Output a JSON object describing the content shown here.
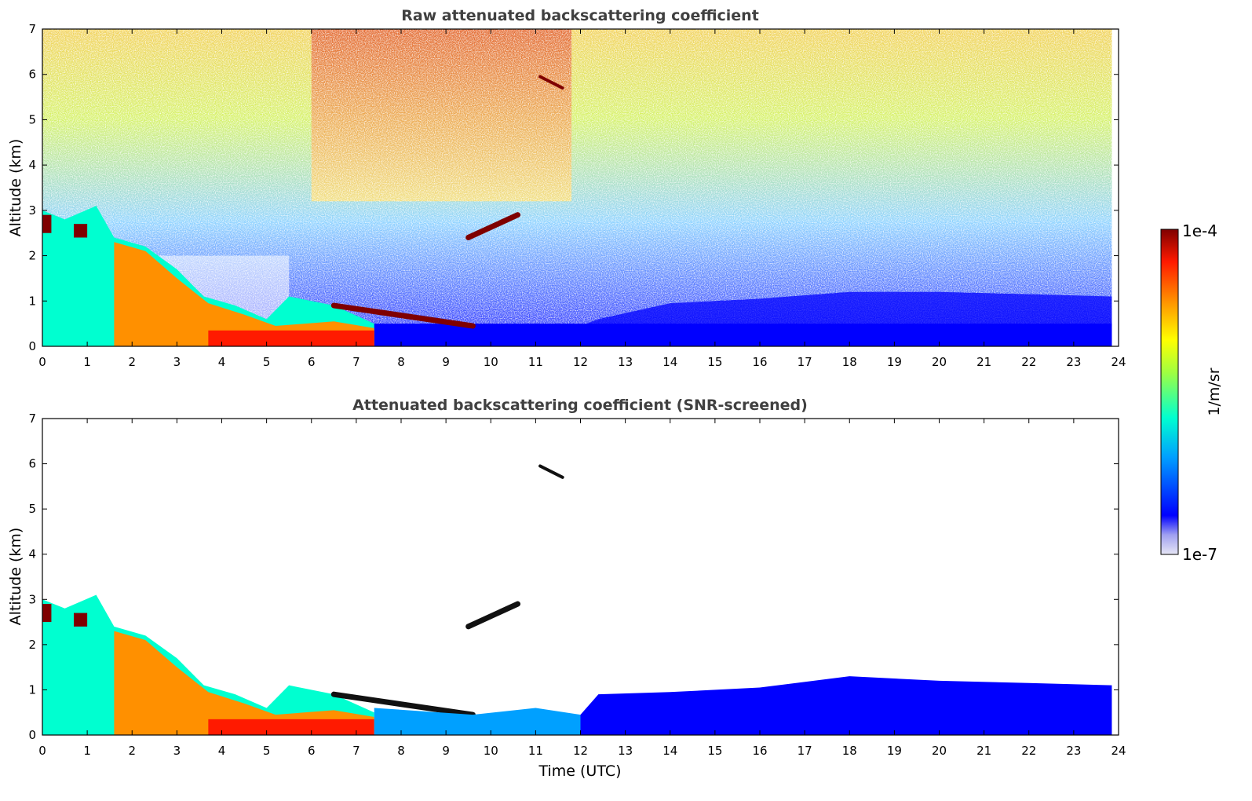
{
  "chart_data": [
    {
      "type": "heatmap",
      "title": "Raw attenuated backscattering coefficient",
      "xlabel": "",
      "ylabel": "Altitude (km)",
      "xlim": [
        0,
        24
      ],
      "ylim": [
        0,
        7
      ],
      "xticks": [
        "0",
        "1",
        "2",
        "3",
        "4",
        "5",
        "6",
        "7",
        "8",
        "9",
        "10",
        "11",
        "12",
        "13",
        "14",
        "15",
        "16",
        "17",
        "18",
        "19",
        "20",
        "21",
        "22",
        "23",
        "24"
      ],
      "yticks": [
        "0",
        "1",
        "2",
        "3",
        "4",
        "5",
        "6",
        "7"
      ],
      "color_scale": "log",
      "features": [
        {
          "kind": "surface_layer",
          "x": [
            0,
            23.85
          ],
          "top_km": [
            0.5,
            0.5
          ],
          "level": "low"
        },
        {
          "kind": "boundary_layer_descending",
          "x": [
            0,
            7.4
          ],
          "top_km": [
            3.0,
            0.5
          ],
          "level": "high"
        },
        {
          "kind": "cloud_layer",
          "x": [
            6.5,
            9.6
          ],
          "alt_km": [
            0.9,
            0.45
          ],
          "level": "max"
        },
        {
          "kind": "cloud_layer",
          "x": [
            9.5,
            10.6
          ],
          "alt_km": [
            2.4,
            2.9
          ],
          "level": "max"
        },
        {
          "kind": "cloud_patch",
          "x": [
            11.1,
            11.6
          ],
          "alt_km": [
            5.95,
            5.7
          ],
          "level": "max"
        },
        {
          "kind": "noisy_free_troposphere",
          "x": [
            0,
            24
          ],
          "alt_km": [
            0.5,
            7
          ],
          "level": "medium"
        },
        {
          "kind": "afternoon_boundary_layer",
          "x": [
            12,
            23.85
          ],
          "top_km": [
            0.6,
            1.2
          ],
          "level": "low"
        }
      ]
    },
    {
      "type": "heatmap",
      "title": "Attenuated backscattering coefficient (SNR-screened)",
      "xlabel": "Time (UTC)",
      "ylabel": "Altitude (km)",
      "xlim": [
        0,
        24
      ],
      "ylim": [
        0,
        7
      ],
      "xticks": [
        "0",
        "1",
        "2",
        "3",
        "4",
        "5",
        "6",
        "7",
        "8",
        "9",
        "10",
        "11",
        "12",
        "13",
        "14",
        "15",
        "16",
        "17",
        "18",
        "19",
        "20",
        "21",
        "22",
        "23",
        "24"
      ],
      "yticks": [
        "0",
        "1",
        "2",
        "3",
        "4",
        "5",
        "6",
        "7"
      ],
      "color_scale": "log",
      "features": [
        {
          "kind": "boundary_layer_descending",
          "x": [
            0,
            7.4
          ],
          "top_km": [
            3.0,
            0.5
          ],
          "level": "high"
        },
        {
          "kind": "cloud_layer",
          "x": [
            6.5,
            9.6
          ],
          "alt_km": [
            0.9,
            0.45
          ],
          "level": "max"
        },
        {
          "kind": "cloud_layer",
          "x": [
            9.5,
            10.6
          ],
          "alt_km": [
            2.4,
            2.9
          ],
          "level": "max"
        },
        {
          "kind": "cloud_patch",
          "x": [
            11.1,
            11.6
          ],
          "alt_km": [
            5.95,
            5.7
          ],
          "level": "max"
        },
        {
          "kind": "aerosol_layer",
          "x": [
            12,
            23.85
          ],
          "top_km": [
            0.9,
            1.3
          ],
          "level": "low"
        }
      ]
    }
  ],
  "colorbar": {
    "label": "1/m/sr",
    "max_label": "1e-4",
    "min_label": "1e-7",
    "colormap": "jet",
    "colors": [
      "#e6e6f5",
      "#0000ff",
      "#00a0ff",
      "#00ffd0",
      "#a0ff40",
      "#ffff00",
      "#ff9000",
      "#ff1a00",
      "#7f0000"
    ]
  }
}
